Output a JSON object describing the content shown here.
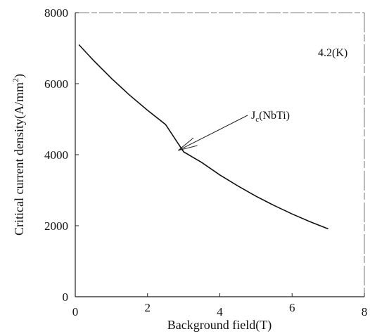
{
  "chart_data": {
    "type": "line",
    "title": "",
    "xlabel": "Background field(T)",
    "ylabel_main": "Critical current density(A/mm",
    "ylabel_sup": "2",
    "ylabel_close": ")",
    "xlim": [
      0,
      8
    ],
    "ylim": [
      0,
      8000
    ],
    "xticks": [
      "0",
      "2",
      "4",
      "6",
      "8"
    ],
    "yticks": [
      "0",
      "2000",
      "4000",
      "6000",
      "8000"
    ],
    "grid": false,
    "series": [
      {
        "x": [
          0.1,
          0.5,
          1.0,
          1.5,
          2.0,
          2.5,
          3.0,
          3.5,
          4.0,
          4.5,
          5.0,
          5.5,
          6.0,
          6.5,
          7.0
        ],
        "y": [
          7100,
          6660,
          6150,
          5680,
          5250,
          4850,
          4080,
          3780,
          3430,
          3120,
          2830,
          2570,
          2330,
          2110,
          1910
        ]
      }
    ],
    "annotations": {
      "temperature": "4.2(K)",
      "curve_label_main": "J",
      "curve_label_sub": "c",
      "curve_label_rest": "(NbTi)",
      "arrow_to": {
        "x": 2.85,
        "y": 4120
      }
    }
  }
}
